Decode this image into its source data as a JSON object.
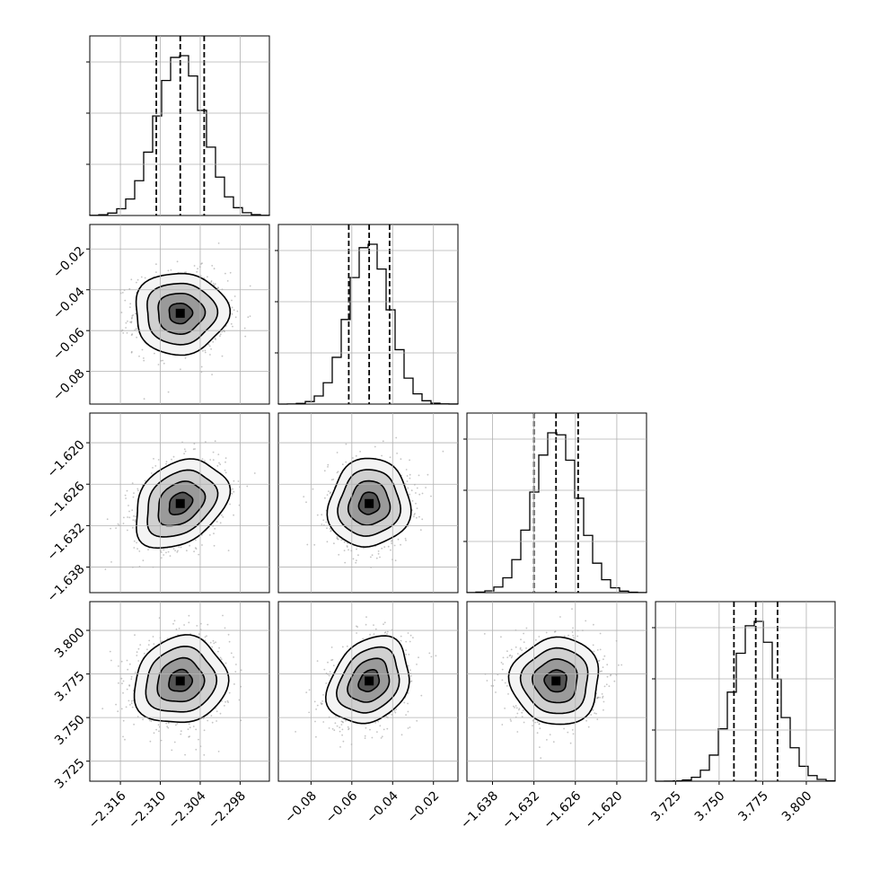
{
  "chart_data": {
    "type": "corner",
    "parameters": [
      {
        "mean": -2.307,
        "sigma": 0.0035,
        "lim": [
          -2.3206,
          -2.2936
        ],
        "ticks": [
          -2.316,
          -2.31,
          -2.304,
          -2.298
        ],
        "tick_labels": [
          "−2.316",
          "−2.310",
          "−2.304",
          "−2.298"
        ],
        "q16": -2.3106,
        "q50": -2.307,
        "q84": -2.3034
      },
      {
        "mean": -0.0515,
        "sigma": 0.01,
        "lim": [
          -0.096,
          -0.008
        ],
        "ticks": [
          -0.08,
          -0.06,
          -0.04,
          -0.02
        ],
        "tick_labels": [
          "−0.08",
          "−0.06",
          "−0.04",
          "−0.02"
        ],
        "q16": -0.0615,
        "q50": -0.0515,
        "q84": -0.0415
      },
      {
        "mean": -1.6288,
        "sigma": 0.0032,
        "lim": [
          -1.6417,
          -1.6157
        ],
        "ticks": [
          -1.638,
          -1.632,
          -1.626,
          -1.62
        ],
        "tick_labels": [
          "−1.638",
          "−1.632",
          "−1.626",
          "−1.620"
        ],
        "q16": -1.632,
        "q50": -1.6288,
        "q84": -1.6256
      },
      {
        "mean": 3.771,
        "sigma": 0.0125,
        "lim": [
          3.7135,
          3.8165
        ],
        "ticks": [
          3.725,
          3.75,
          3.775,
          3.8
        ],
        "tick_labels": [
          "3.725",
          "3.750",
          "3.775",
          "3.800"
        ],
        "q16": 3.7585,
        "q50": 3.771,
        "q84": 3.7835
      }
    ],
    "correlations": [
      {
        "pair": [
          1,
          0
        ],
        "rho": 0.0
      },
      {
        "pair": [
          2,
          0
        ],
        "rho": 0.3
      },
      {
        "pair": [
          2,
          1
        ],
        "rho": 0.05
      },
      {
        "pair": [
          3,
          0
        ],
        "rho": 0.1
      },
      {
        "pair": [
          3,
          1
        ],
        "rho": 0.25
      },
      {
        "pair": [
          3,
          2
        ],
        "rho": 0.0
      }
    ],
    "contour_levels_sigma": [
      0.5,
      1.0,
      1.5,
      2.0
    ],
    "grid": true,
    "colors": {
      "contour": "#000000",
      "scatter": "#8a8a8a",
      "hist": "#000000",
      "grid": "#b0b0b0"
    }
  }
}
